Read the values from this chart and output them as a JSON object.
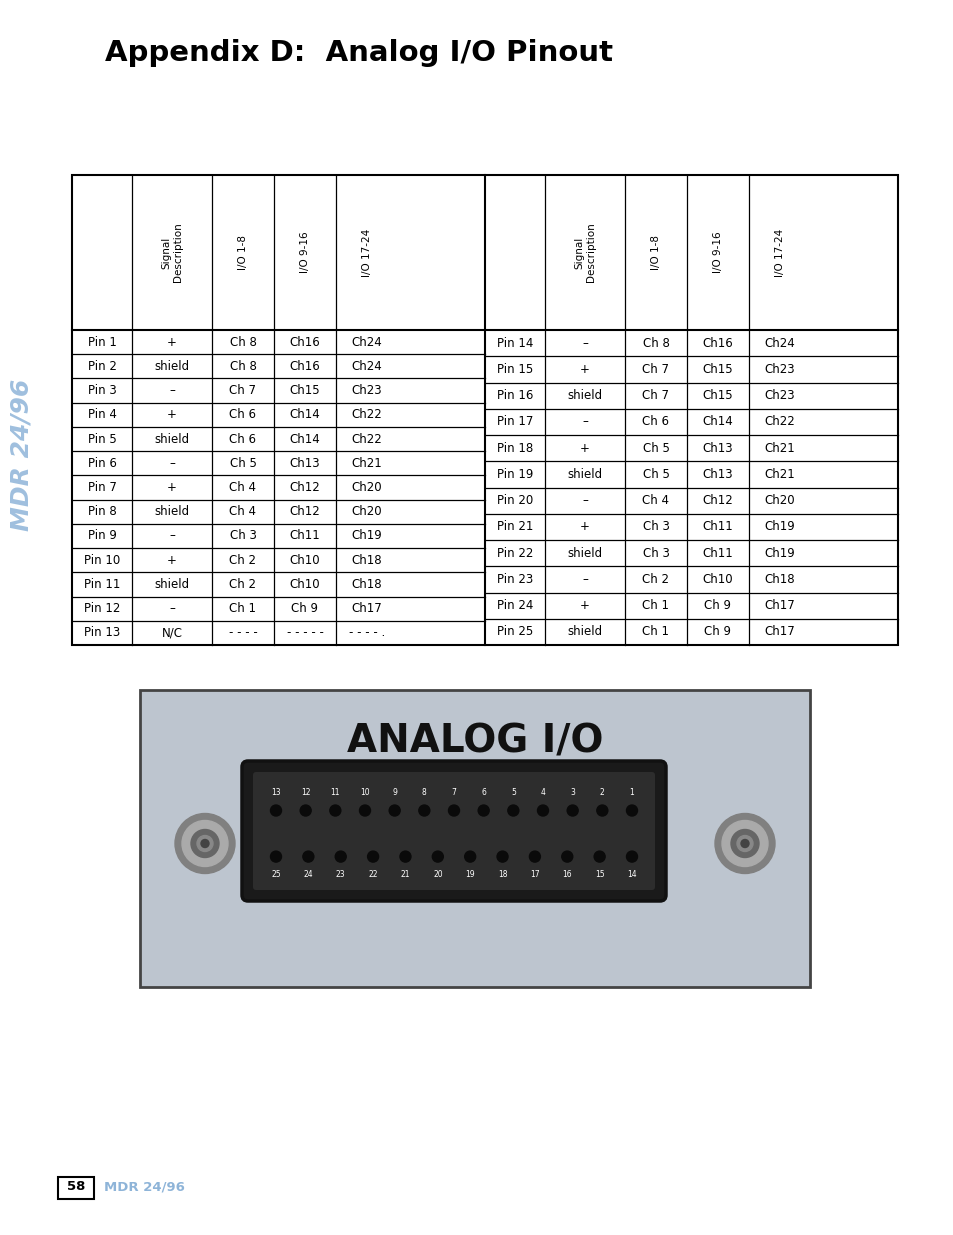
{
  "title": "Appendix D:  Analog I/O Pinout",
  "sidebar_text": "MDR 24/96",
  "page_number": "58",
  "page_label": "MDR 24/96",
  "bg_color": "#ffffff",
  "sidebar_color": "#8eb4d8",
  "left_table_headers": [
    "Signal\nDescription",
    "I/O 1-8",
    "I/O 9-16",
    "I/O 17-24"
  ],
  "right_table_headers": [
    "Signal\nDescription",
    "I/O 1-8",
    "I/O 9-16",
    "I/O 17-24"
  ],
  "left_rows": [
    [
      "Pin 1",
      "+",
      "Ch 8",
      "Ch16",
      "Ch24"
    ],
    [
      "Pin 2",
      "shield",
      "Ch 8",
      "Ch16",
      "Ch24"
    ],
    [
      "Pin 3",
      "–",
      "Ch 7",
      "Ch15",
      "Ch23"
    ],
    [
      "Pin 4",
      "+",
      "Ch 6",
      "Ch14",
      "Ch22"
    ],
    [
      "Pin 5",
      "shield",
      "Ch 6",
      "Ch14",
      "Ch22"
    ],
    [
      "Pin 6",
      "–",
      "Ch 5",
      "Ch13",
      "Ch21"
    ],
    [
      "Pin 7",
      "+",
      "Ch 4",
      "Ch12",
      "Ch20"
    ],
    [
      "Pin 8",
      "shield",
      "Ch 4",
      "Ch12",
      "Ch20"
    ],
    [
      "Pin 9",
      "–",
      "Ch 3",
      "Ch11",
      "Ch19"
    ],
    [
      "Pin 10",
      "+",
      "Ch 2",
      "Ch10",
      "Ch18"
    ],
    [
      "Pin 11",
      "shield",
      "Ch 2",
      "Ch10",
      "Ch18"
    ],
    [
      "Pin 12",
      "–",
      "Ch 1",
      "Ch 9",
      "Ch17"
    ],
    [
      "Pin 13",
      "N/C",
      "- - - -",
      "- - - - -",
      "- - - - ."
    ]
  ],
  "right_rows": [
    [
      "Pin 14",
      "–",
      "Ch 8",
      "Ch16",
      "Ch24"
    ],
    [
      "Pin 15",
      "+",
      "Ch 7",
      "Ch15",
      "Ch23"
    ],
    [
      "Pin 16",
      "shield",
      "Ch 7",
      "Ch15",
      "Ch23"
    ],
    [
      "Pin 17",
      "–",
      "Ch 6",
      "Ch14",
      "Ch22"
    ],
    [
      "Pin 18",
      "+",
      "Ch 5",
      "Ch13",
      "Ch21"
    ],
    [
      "Pin 19",
      "shield",
      "Ch 5",
      "Ch13",
      "Ch21"
    ],
    [
      "Pin 20",
      "–",
      "Ch 4",
      "Ch12",
      "Ch20"
    ],
    [
      "Pin 21",
      "+",
      "Ch 3",
      "Ch11",
      "Ch19"
    ],
    [
      "Pin 22",
      "shield",
      "Ch 3",
      "Ch11",
      "Ch19"
    ],
    [
      "Pin 23",
      "–",
      "Ch 2",
      "Ch10",
      "Ch18"
    ],
    [
      "Pin 24",
      "+",
      "Ch 1",
      "Ch 9",
      "Ch17"
    ],
    [
      "Pin 25",
      "shield",
      "Ch 1",
      "Ch 9",
      "Ch17"
    ]
  ],
  "connector_bg": "#bdc5cf",
  "connector_title": "ANALOG I/O",
  "top_pins": [
    "13",
    "12",
    "11",
    "10",
    "9",
    "8",
    "7",
    "6",
    "5",
    "4",
    "3",
    "2",
    "1"
  ],
  "bottom_pins": [
    "25",
    "24",
    "23",
    "22",
    "21",
    "20",
    "19",
    "18",
    "17",
    "16",
    "15",
    "14"
  ]
}
